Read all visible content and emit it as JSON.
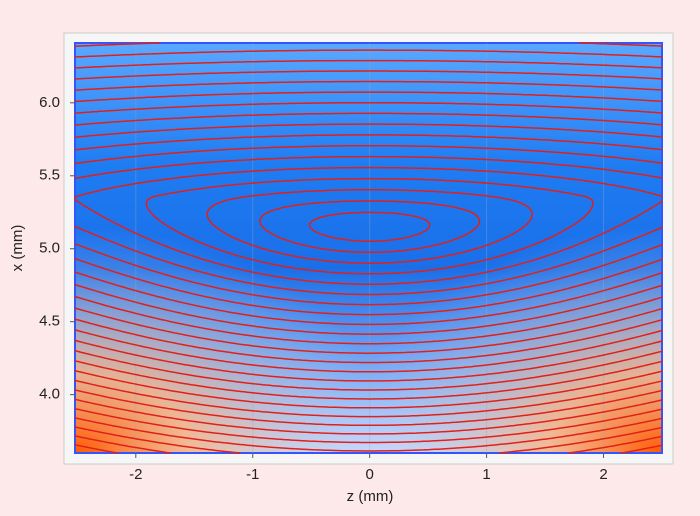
{
  "chart_data": {
    "type": "contour",
    "x_label": "z (mm)",
    "y_label": "x (mm)",
    "xlim": [
      -2.52,
      2.5
    ],
    "ylim": [
      3.6,
      6.41
    ],
    "xticks": [
      -2,
      -1,
      0,
      1,
      2
    ],
    "yticks": [
      {
        "value": 4,
        "label": "4.0"
      },
      {
        "value": 4.5,
        "label": "4.5"
      },
      {
        "value": 5,
        "label": "5.0"
      },
      {
        "value": 5.5,
        "label": "5.5"
      },
      {
        "value": 6,
        "label": "6.0"
      }
    ]
  }
}
